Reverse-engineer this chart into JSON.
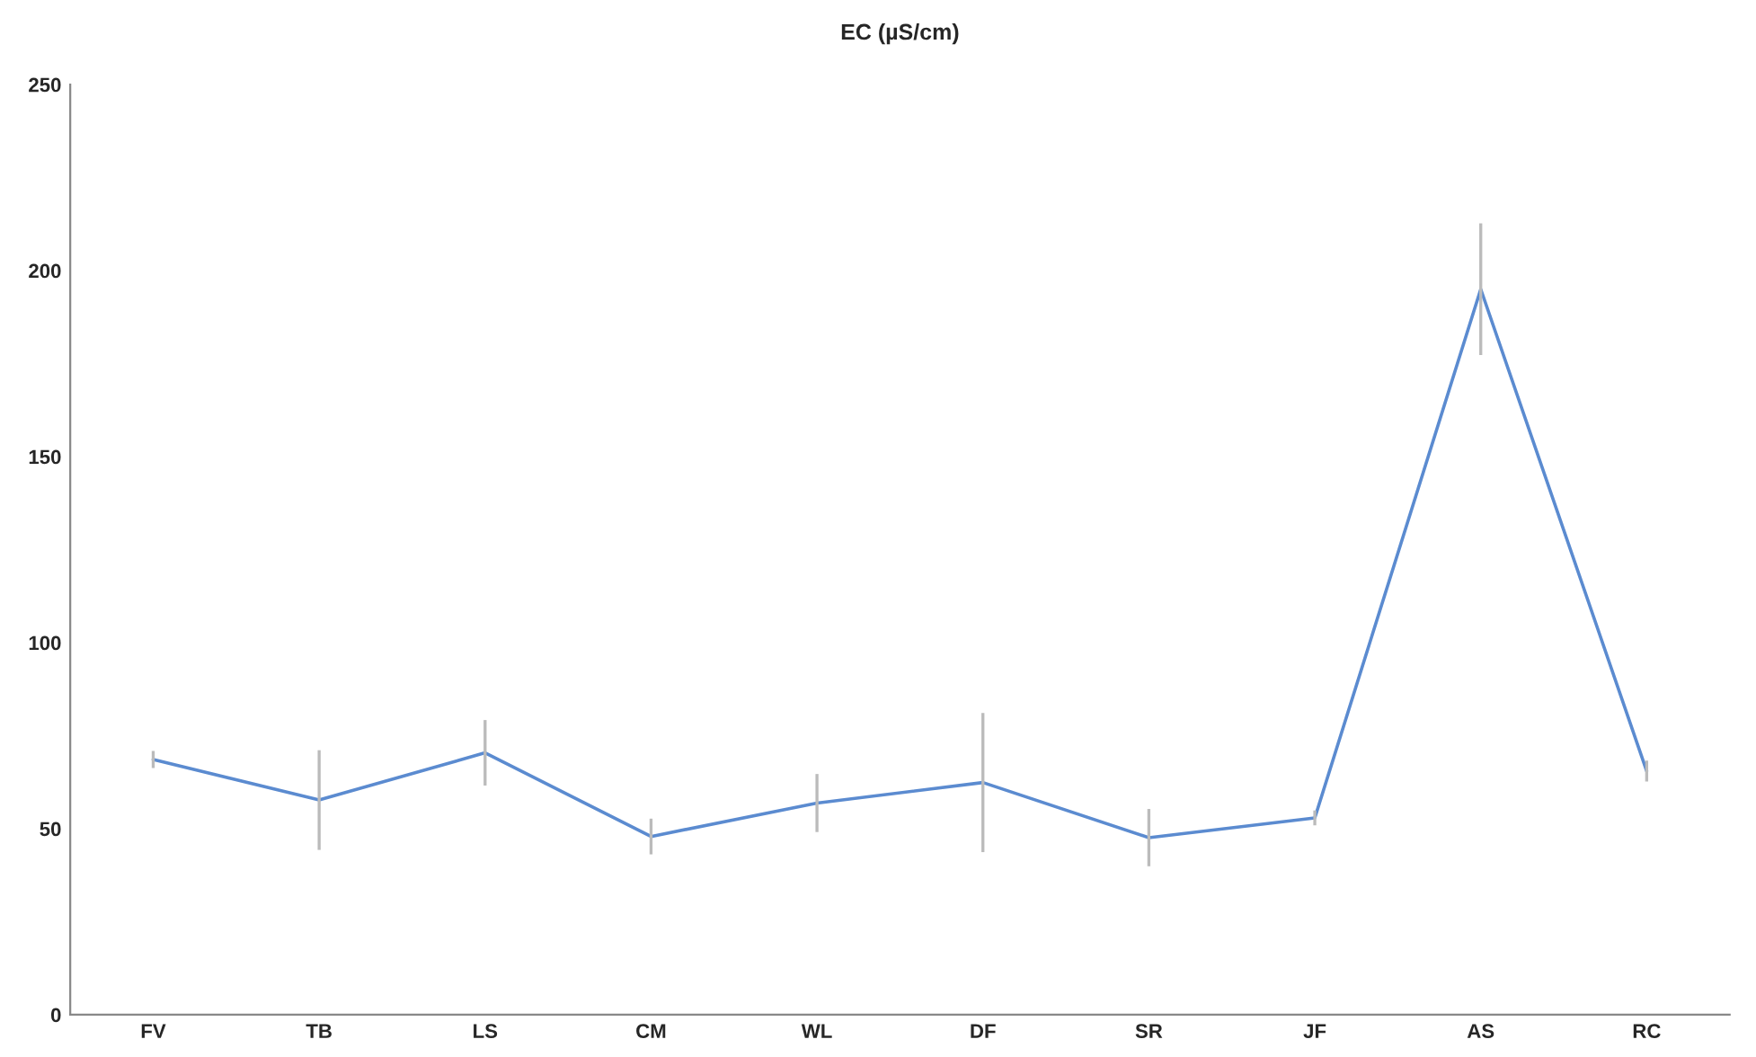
{
  "chart_data": {
    "type": "line",
    "title": "EC (µS/cm)",
    "categories": [
      "FV",
      "TB",
      "LS",
      "CM",
      "WL",
      "DF",
      "SR",
      "JF",
      "AS",
      "RC"
    ],
    "series": [
      {
        "color": "#5b8bd0",
        "values": [
          68.6,
          57.7,
          70.4,
          47.9,
          56.9,
          62.4,
          47.6,
          52.9,
          195,
          65.5
        ],
        "errors": [
          2.3,
          13.4,
          8.8,
          4.8,
          7.8,
          18.7,
          7.7,
          2,
          17.7,
          2.8
        ]
      }
    ],
    "ylim": [
      0,
      250
    ],
    "yticks": [
      0,
      50,
      100,
      150,
      200,
      250
    ],
    "grid": false,
    "marker": "none",
    "line_style": "solid"
  }
}
